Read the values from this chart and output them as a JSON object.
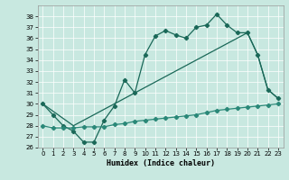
{
  "title": "",
  "xlabel": "Humidex (Indice chaleur)",
  "bg_color": "#c8e8e0",
  "grid_color": "#ffffff",
  "line_color_dark": "#1a6858",
  "line_color_mid": "#2a8878",
  "xlim": [
    -0.5,
    23.5
  ],
  "ylim": [
    26,
    39
  ],
  "yticks": [
    26,
    27,
    28,
    29,
    30,
    31,
    32,
    33,
    34,
    35,
    36,
    37,
    38
  ],
  "xticks": [
    0,
    1,
    2,
    3,
    4,
    5,
    6,
    7,
    8,
    9,
    10,
    11,
    12,
    13,
    14,
    15,
    16,
    17,
    18,
    19,
    20,
    21,
    22,
    23
  ],
  "series1_x": [
    0,
    1,
    2,
    3,
    4,
    5,
    6,
    7,
    8,
    9,
    10,
    11,
    12,
    13,
    14,
    15,
    16,
    17,
    18,
    19,
    20,
    21,
    22,
    23
  ],
  "series1_y": [
    30.0,
    29.0,
    28.0,
    27.5,
    26.5,
    26.5,
    28.5,
    29.8,
    32.2,
    31.0,
    34.5,
    36.2,
    36.7,
    36.3,
    36.0,
    37.0,
    37.2,
    38.2,
    37.2,
    36.5,
    36.5,
    34.5,
    31.3,
    30.5
  ],
  "series2_x": [
    0,
    3,
    20,
    21,
    22,
    23
  ],
  "series2_y": [
    30.0,
    28.0,
    36.5,
    34.5,
    31.3,
    30.5
  ],
  "series3_x": [
    0,
    1,
    2,
    3,
    4,
    5,
    6,
    7,
    8,
    9,
    10,
    11,
    12,
    13,
    14,
    15,
    16,
    17,
    18,
    19,
    20,
    21,
    22,
    23
  ],
  "series3_y": [
    28.0,
    27.8,
    27.8,
    27.8,
    27.9,
    27.9,
    27.9,
    28.1,
    28.2,
    28.4,
    28.5,
    28.6,
    28.7,
    28.8,
    28.9,
    29.0,
    29.2,
    29.4,
    29.5,
    29.6,
    29.7,
    29.8,
    29.9,
    30.0
  ]
}
